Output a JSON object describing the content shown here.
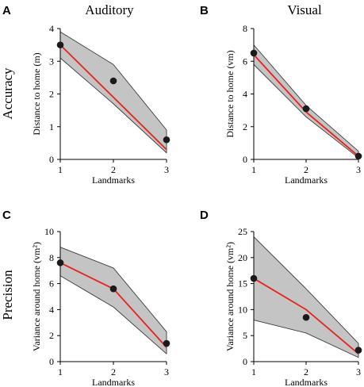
{
  "figure": {
    "column_titles": [
      "Auditory",
      "Visual"
    ],
    "row_titles": [
      "Accuracy",
      "Precision"
    ],
    "colors": {
      "band": "#c4c4c4",
      "band_stroke": "#3c3c3c",
      "model_line": "#e8221c",
      "points": "#1a1a1a",
      "axes": "#000000"
    }
  },
  "chart_data": [
    {
      "panel": "A",
      "type": "line",
      "xlabel": "Landmarks",
      "ylabel": "Distance to home (m)",
      "x": [
        1,
        2,
        3
      ],
      "xlim": [
        1,
        3
      ],
      "ylim": [
        0,
        4
      ],
      "xticks": [
        1,
        2,
        3
      ],
      "yticks": [
        0,
        1,
        2,
        3,
        4
      ],
      "band_upper": [
        3.9,
        2.9,
        0.9
      ],
      "band_lower": [
        3.1,
        1.7,
        0.2
      ],
      "model": [
        3.5,
        1.9,
        0.3
      ],
      "observed": [
        3.5,
        2.4,
        0.6
      ],
      "grid": false,
      "legend": "none"
    },
    {
      "panel": "B",
      "type": "line",
      "xlabel": "Landmarks",
      "ylabel": "Distance to home (vm)",
      "x": [
        1,
        2,
        3
      ],
      "xlim": [
        1,
        3
      ],
      "ylim": [
        0,
        8
      ],
      "xticks": [
        1,
        2,
        3
      ],
      "yticks": [
        0,
        2,
        4,
        6,
        8
      ],
      "band_upper": [
        7.0,
        3.3,
        0.5
      ],
      "band_lower": [
        5.8,
        2.6,
        0.1
      ],
      "model": [
        6.4,
        2.9,
        0.2
      ],
      "observed": [
        6.5,
        3.1,
        0.2
      ],
      "grid": false,
      "legend": "none"
    },
    {
      "panel": "C",
      "type": "line",
      "xlabel": "Landmarks",
      "ylabel": "Variance around home (vm²)",
      "x": [
        1,
        2,
        3
      ],
      "xlim": [
        1,
        3
      ],
      "ylim": [
        0,
        10
      ],
      "xticks": [
        1,
        2,
        3
      ],
      "yticks": [
        0,
        2,
        4,
        6,
        8,
        10
      ],
      "band_upper": [
        8.8,
        7.2,
        2.3
      ],
      "band_lower": [
        6.6,
        4.2,
        0.6
      ],
      "model": [
        7.6,
        5.6,
        1.1
      ],
      "observed": [
        7.6,
        5.6,
        1.4
      ],
      "grid": false,
      "legend": "none"
    },
    {
      "panel": "D",
      "type": "line",
      "xlabel": "Landmarks",
      "ylabel": "Variance around home (vm²)",
      "x": [
        1,
        2,
        3
      ],
      "xlim": [
        1,
        3
      ],
      "ylim": [
        0,
        25
      ],
      "xticks": [
        1,
        2,
        3
      ],
      "yticks": [
        0,
        5,
        10,
        15,
        20,
        25
      ],
      "band_upper": [
        24.0,
        14.0,
        3.5
      ],
      "band_lower": [
        8.0,
        5.5,
        0.8
      ],
      "model": [
        16.0,
        10.0,
        1.5
      ],
      "observed": [
        16.0,
        8.5,
        2.2
      ],
      "grid": false,
      "legend": "none"
    }
  ]
}
